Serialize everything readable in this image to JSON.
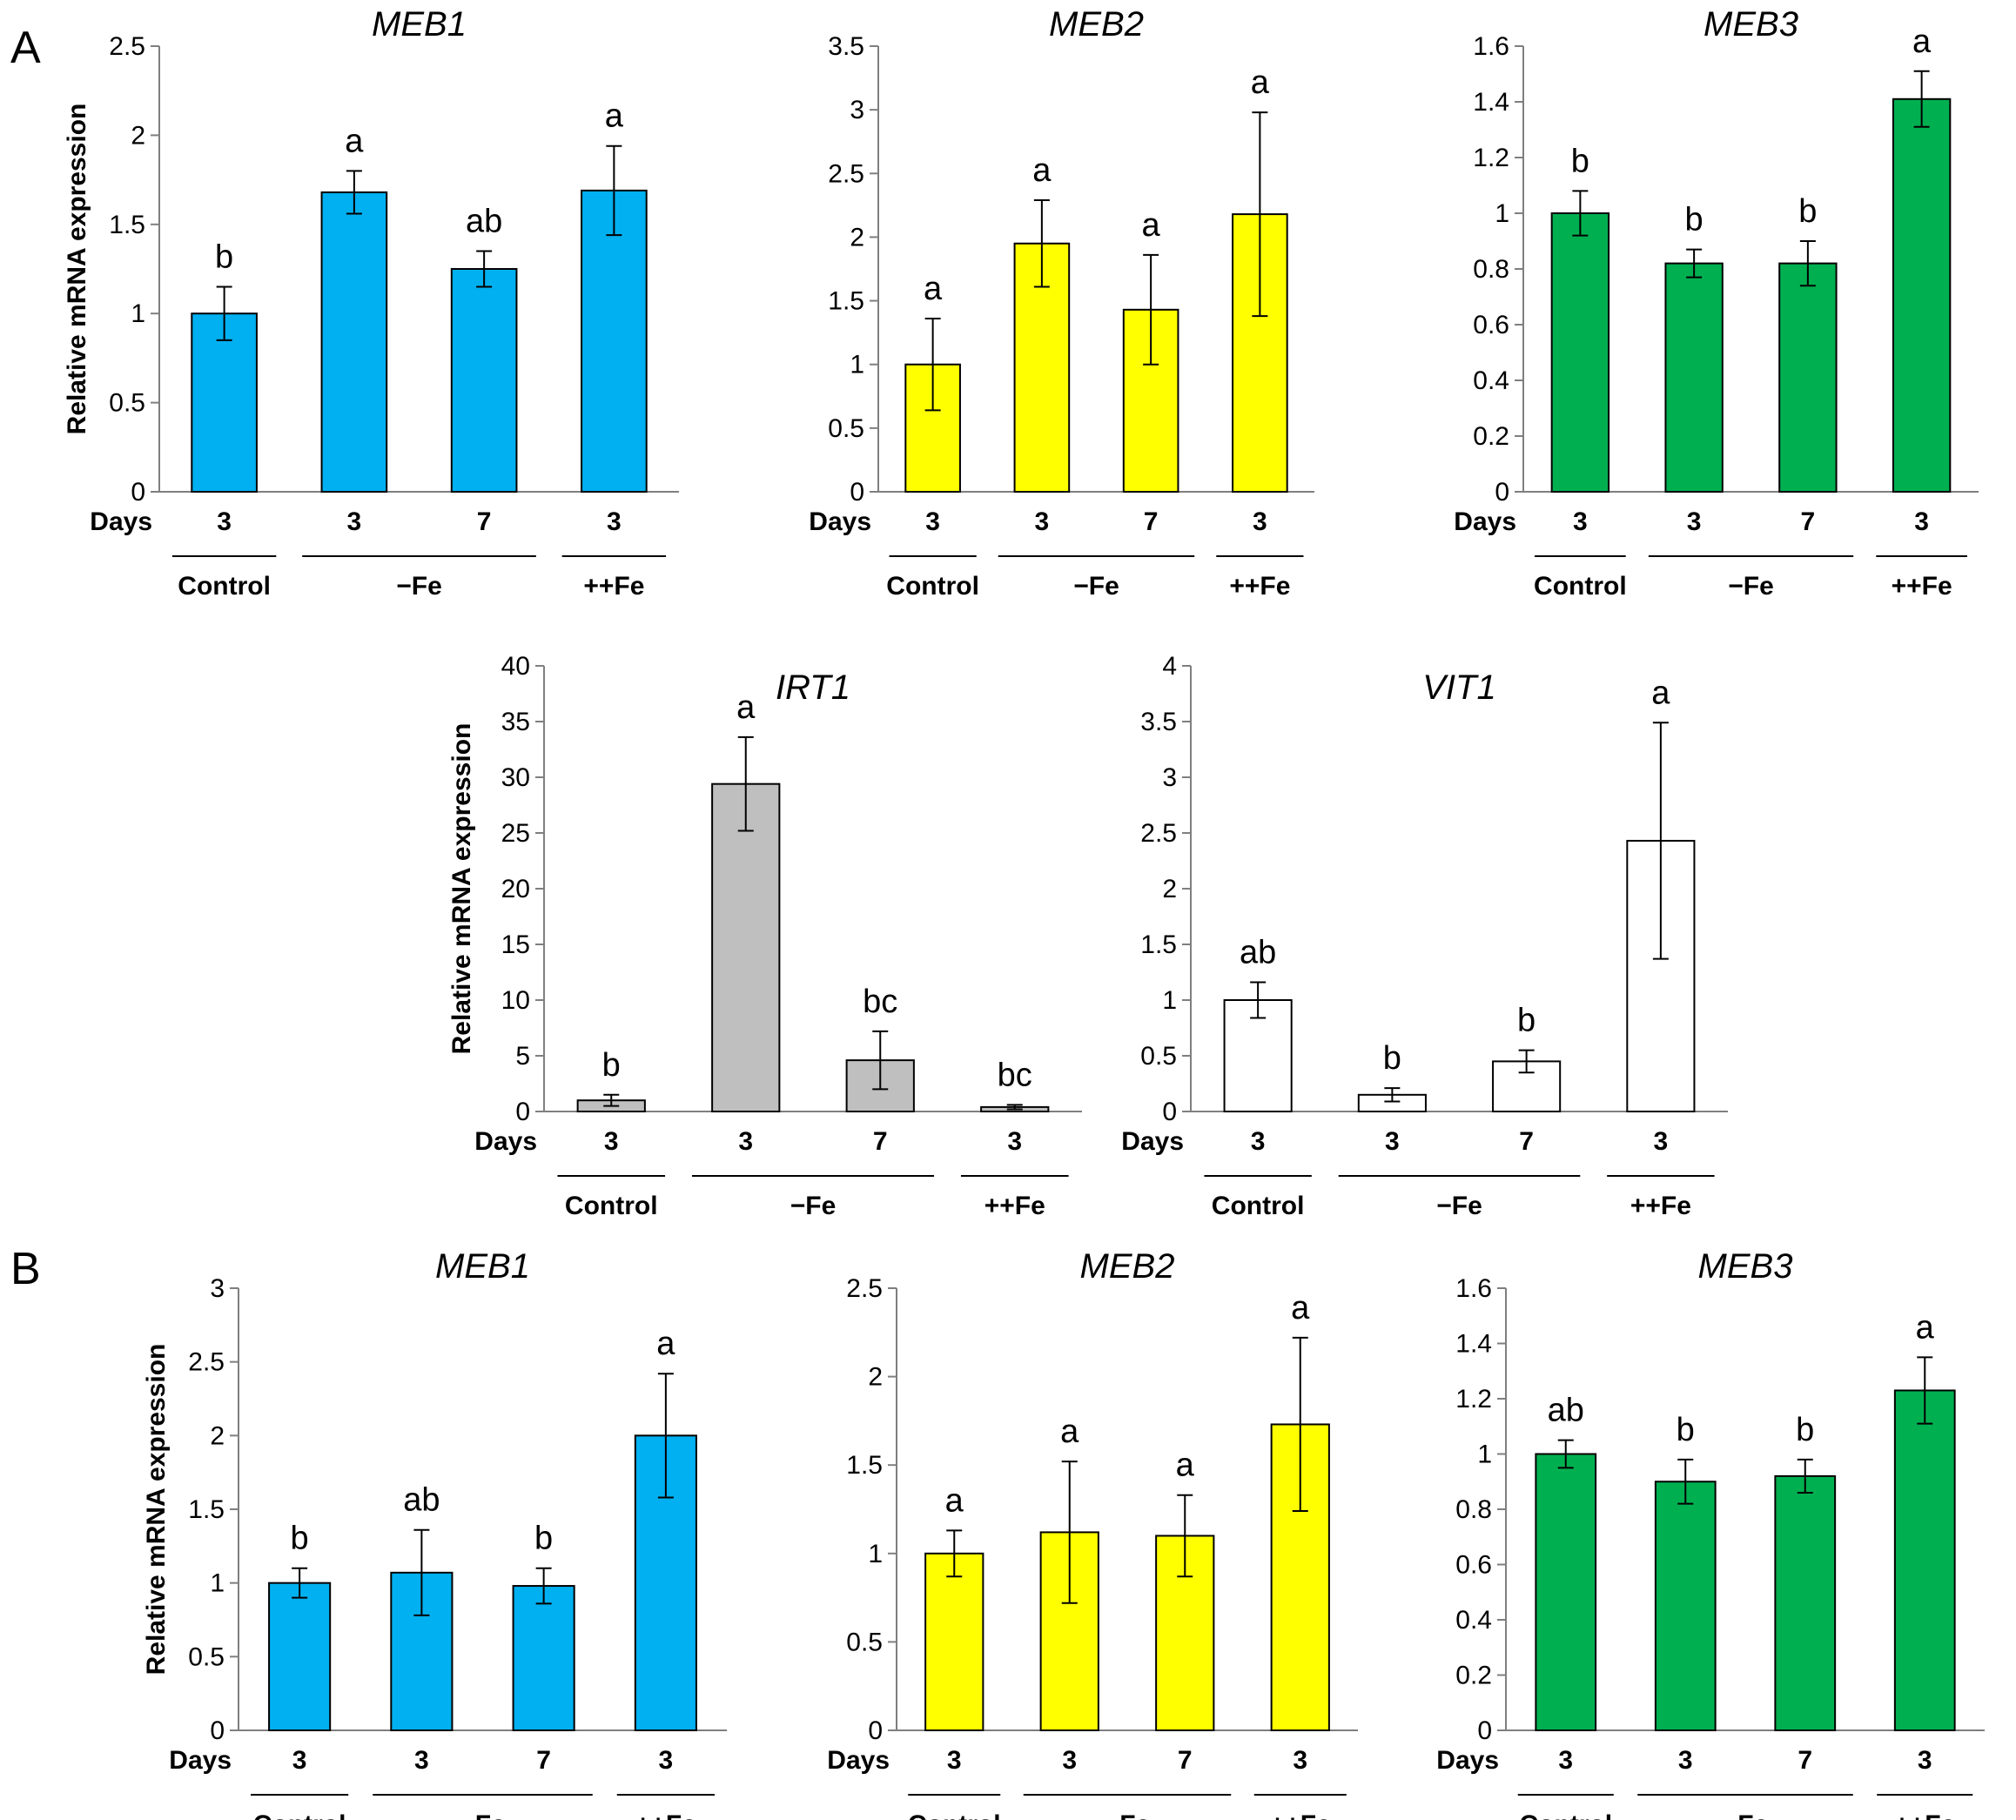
{
  "panels": {
    "A": "A",
    "B": "B"
  },
  "chart_data": [
    {
      "id": "A-MEB1",
      "type": "bar",
      "panel": "A",
      "title": "MEB1",
      "title_italic": true,
      "ylabel": "Relative mRNA expression",
      "ylim": [
        0,
        2.5
      ],
      "yticks": [
        "0",
        "0.5",
        "1",
        "1.5",
        "2",
        "2.5"
      ],
      "days_label": "Days",
      "days": [
        "3",
        "3",
        "7",
        "3"
      ],
      "groups": [
        {
          "label": "Control",
          "bars": [
            0
          ]
        },
        {
          "label": "−Fe",
          "bars": [
            1,
            2
          ]
        },
        {
          "label": "++Fe",
          "bars": [
            3
          ]
        }
      ],
      "values": [
        1.0,
        1.68,
        1.25,
        1.69
      ],
      "errors": [
        0.15,
        0.12,
        0.1,
        0.25
      ],
      "significance": [
        "b",
        "a",
        "ab",
        "a"
      ],
      "color": "#00b0f0"
    },
    {
      "id": "A-MEB2",
      "type": "bar",
      "panel": "A",
      "title": "MEB2",
      "title_italic": true,
      "ylabel": "",
      "ylim": [
        0,
        3.5
      ],
      "yticks": [
        "0",
        "0.5",
        "1",
        "1.5",
        "2",
        "2.5",
        "3",
        "3.5"
      ],
      "days_label": "Days",
      "days": [
        "3",
        "3",
        "7",
        "3"
      ],
      "groups": [
        {
          "label": "Control",
          "bars": [
            0
          ]
        },
        {
          "label": "−Fe",
          "bars": [
            1,
            2
          ]
        },
        {
          "label": "++Fe",
          "bars": [
            3
          ]
        }
      ],
      "values": [
        1.0,
        1.95,
        1.43,
        2.18
      ],
      "errors": [
        0.36,
        0.34,
        0.43,
        0.8
      ],
      "significance": [
        "a",
        "a",
        "a",
        "a"
      ],
      "color": "#ffff00"
    },
    {
      "id": "A-MEB3",
      "type": "bar",
      "panel": "A",
      "title": "MEB3",
      "title_italic": true,
      "ylabel": "",
      "ylim": [
        0,
        1.6
      ],
      "yticks": [
        "0",
        "0.2",
        "0.4",
        "0.6",
        "0.8",
        "1",
        "1.2",
        "1.4",
        "1.6"
      ],
      "days_label": "Days",
      "days": [
        "3",
        "3",
        "7",
        "3"
      ],
      "groups": [
        {
          "label": "Control",
          "bars": [
            0
          ]
        },
        {
          "label": "−Fe",
          "bars": [
            1,
            2
          ]
        },
        {
          "label": "++Fe",
          "bars": [
            3
          ]
        }
      ],
      "values": [
        1.0,
        0.82,
        0.82,
        1.41
      ],
      "errors": [
        0.08,
        0.05,
        0.08,
        0.1
      ],
      "significance": [
        "b",
        "b",
        "b",
        "a"
      ],
      "color": "#00b050"
    },
    {
      "id": "A-IRT1",
      "type": "bar",
      "panel": "A",
      "title": "IRT1",
      "title_italic": true,
      "ylabel": "Relative mRNA expression",
      "ylim": [
        0,
        40
      ],
      "yticks": [
        "0",
        "5",
        "10",
        "15",
        "20",
        "25",
        "30",
        "35",
        "40"
      ],
      "days_label": "Days",
      "days": [
        "3",
        "3",
        "7",
        "3"
      ],
      "groups": [
        {
          "label": "Control",
          "bars": [
            0
          ]
        },
        {
          "label": "−Fe",
          "bars": [
            1,
            2
          ]
        },
        {
          "label": "++Fe",
          "bars": [
            3
          ]
        }
      ],
      "values": [
        1.0,
        29.4,
        4.6,
        0.4
      ],
      "errors": [
        0.5,
        4.2,
        2.6,
        0.2
      ],
      "significance": [
        "b",
        "a",
        "bc",
        "bc"
      ],
      "color": "#bfbfbf"
    },
    {
      "id": "A-VIT1",
      "type": "bar",
      "panel": "A",
      "title": "VIT1",
      "title_italic": true,
      "ylabel": "",
      "ylim": [
        0,
        4
      ],
      "yticks": [
        "0",
        "0.5",
        "1",
        "1.5",
        "2",
        "2.5",
        "3",
        "3.5",
        "4"
      ],
      "days_label": "Days",
      "days": [
        "3",
        "3",
        "7",
        "3"
      ],
      "groups": [
        {
          "label": "Control",
          "bars": [
            0
          ]
        },
        {
          "label": "−Fe",
          "bars": [
            1,
            2
          ]
        },
        {
          "label": "++Fe",
          "bars": [
            3
          ]
        }
      ],
      "values": [
        1.0,
        0.15,
        0.45,
        2.43
      ],
      "errors": [
        0.16,
        0.06,
        0.1,
        1.06
      ],
      "significance": [
        "ab",
        "b",
        "b",
        "a"
      ],
      "color": "#ffffff"
    },
    {
      "id": "B-MEB1",
      "type": "bar",
      "panel": "B",
      "title": "MEB1",
      "title_italic": true,
      "ylabel": "Relative mRNA expression",
      "ylim": [
        0,
        3
      ],
      "yticks": [
        "0",
        "0.5",
        "1",
        "1.5",
        "2",
        "2.5",
        "3"
      ],
      "days_label": "Days",
      "days": [
        "3",
        "3",
        "7",
        "3"
      ],
      "groups": [
        {
          "label": "Control",
          "bars": [
            0
          ]
        },
        {
          "label": "−Fe",
          "bars": [
            1,
            2
          ]
        },
        {
          "label": "++Fe",
          "bars": [
            3
          ]
        }
      ],
      "values": [
        1.0,
        1.07,
        0.98,
        2.0
      ],
      "errors": [
        0.1,
        0.29,
        0.12,
        0.42
      ],
      "significance": [
        "b",
        "ab",
        "b",
        "a"
      ],
      "color": "#00b0f0"
    },
    {
      "id": "B-MEB2",
      "type": "bar",
      "panel": "B",
      "title": "MEB2",
      "title_italic": true,
      "ylabel": "",
      "ylim": [
        0,
        2.5
      ],
      "yticks": [
        "0",
        "0.5",
        "1",
        "1.5",
        "2",
        "2.5"
      ],
      "days_label": "Days",
      "days": [
        "3",
        "3",
        "7",
        "3"
      ],
      "groups": [
        {
          "label": "Control",
          "bars": [
            0
          ]
        },
        {
          "label": "−Fe",
          "bars": [
            1,
            2
          ]
        },
        {
          "label": "++Fe",
          "bars": [
            3
          ]
        }
      ],
      "values": [
        1.0,
        1.12,
        1.1,
        1.73
      ],
      "errors": [
        0.13,
        0.4,
        0.23,
        0.49
      ],
      "significance": [
        "a",
        "a",
        "a",
        "a"
      ],
      "color": "#ffff00"
    },
    {
      "id": "B-MEB3",
      "type": "bar",
      "panel": "B",
      "title": "MEB3",
      "title_italic": true,
      "ylabel": "",
      "ylim": [
        0,
        1.6
      ],
      "yticks": [
        "0",
        "0.2",
        "0.4",
        "0.6",
        "0.8",
        "1",
        "1.2",
        "1.4",
        "1.6"
      ],
      "days_label": "Days",
      "days": [
        "3",
        "3",
        "7",
        "3"
      ],
      "groups": [
        {
          "label": "Control",
          "bars": [
            0
          ]
        },
        {
          "label": "−Fe",
          "bars": [
            1,
            2
          ]
        },
        {
          "label": "++Fe",
          "bars": [
            3
          ]
        }
      ],
      "values": [
        1.0,
        0.9,
        0.92,
        1.23
      ],
      "errors": [
        0.05,
        0.08,
        0.06,
        0.12
      ],
      "significance": [
        "ab",
        "b",
        "b",
        "a"
      ],
      "color": "#00b050"
    }
  ]
}
